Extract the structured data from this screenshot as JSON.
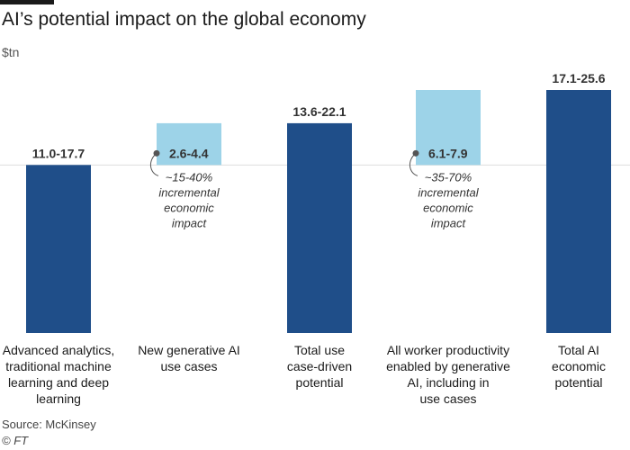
{
  "title": "AI’s potential impact on the global economy",
  "unit": "$tn",
  "source": "Source: McKinsey",
  "credit": "© FT",
  "colors": {
    "base": "#1f4e89",
    "increment": "#9dd3e8",
    "baseline": "#dddddd",
    "annotation": "#555555"
  },
  "chart_data": {
    "type": "bar",
    "subtype": "waterfall",
    "title": "AI’s potential impact on the global economy",
    "ylabel": "$tn",
    "ylim": [
      0,
      26
    ],
    "categories": [
      "Advanced analytics, traditional machine learning and deep learning",
      "New generative AI use cases",
      "Total use case-driven potential",
      "All worker productivity enabled by generative AI, including in use cases",
      "Total AI economic potential"
    ],
    "bars": [
      {
        "kind": "total",
        "base": 0,
        "value": 17.7,
        "label": "11.0-17.7"
      },
      {
        "kind": "increment",
        "base": 17.7,
        "value": 4.4,
        "label": "2.6-4.4"
      },
      {
        "kind": "total",
        "base": 0,
        "value": 22.1,
        "label": "13.6-22.1"
      },
      {
        "kind": "increment",
        "base": 17.7,
        "value": 7.9,
        "label": "6.1-7.9"
      },
      {
        "kind": "total",
        "base": 0,
        "value": 25.6,
        "label": "17.1-25.6"
      }
    ],
    "annotations": [
      {
        "bar": 1,
        "lines": [
          "~15-40%",
          "incremental",
          "economic",
          "impact"
        ]
      },
      {
        "bar": 3,
        "lines": [
          "~35-70%",
          "incremental",
          "economic",
          "impact"
        ]
      }
    ]
  },
  "category_labels": [
    [
      "Advanced analytics,",
      "traditional machine",
      "learning and deep",
      "learning"
    ],
    [
      "New generative AI",
      "use cases"
    ],
    [
      "Total use",
      "case-driven",
      "potential"
    ],
    [
      "All worker productivity",
      "enabled by generative",
      "AI, including in",
      "use cases"
    ],
    [
      "Total AI",
      "economic",
      "potential"
    ]
  ]
}
